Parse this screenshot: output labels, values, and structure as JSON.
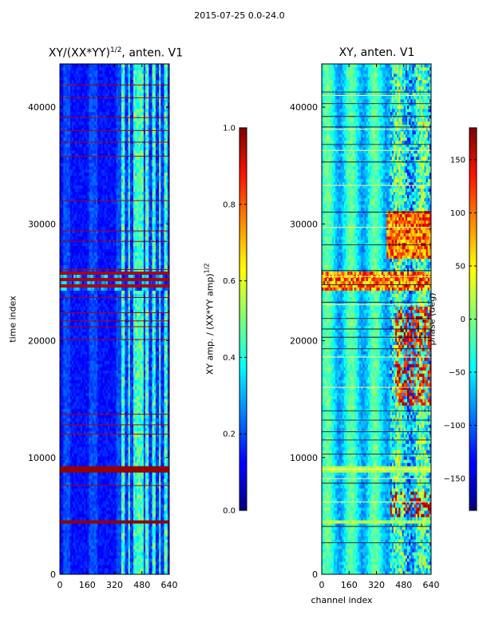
{
  "figure": {
    "suptitle": "2015-07-25 0.0-24.0"
  },
  "chart_data": [
    {
      "type": "heatmap",
      "title_main": "XY/(XX*YY)",
      "title_sup": "1/2",
      "title_tail": ", anten. V1",
      "xlabel": "",
      "ylabel": "time index",
      "xlim": [
        0,
        640
      ],
      "ylim": [
        0,
        43700
      ],
      "xticks": [
        0,
        160,
        320,
        480,
        640
      ],
      "yticks": [
        0,
        10000,
        20000,
        30000,
        40000
      ],
      "colorbar": {
        "label_main": "XY amp. / (XX*YY amp)",
        "label_sup": "1/2",
        "range": [
          0.0,
          1.0
        ],
        "ticks": [
          "0.0",
          "0.2",
          "0.4",
          "0.6",
          "0.8",
          "1.0"
        ],
        "tick_values": [
          0.0,
          0.2,
          0.4,
          0.6,
          0.8,
          1.0
        ]
      },
      "flagged_time_bands": [
        [
          4300,
          4700
        ],
        [
          8800,
          9200
        ],
        [
          24200,
          25900
        ]
      ],
      "high_amplitude_channel_range": [
        400,
        640
      ]
    },
    {
      "type": "heatmap",
      "title": "XY, anten. V1",
      "xlabel": "channel index",
      "ylabel": "",
      "xlim": [
        0,
        640
      ],
      "ylim": [
        0,
        43700
      ],
      "xticks": [
        0,
        160,
        320,
        480,
        640
      ],
      "yticks": [
        0,
        10000,
        20000,
        30000,
        40000
      ],
      "colorbar": {
        "label": "phase (deg)",
        "range": [
          -180,
          180
        ],
        "ticks": [
          "150",
          "100",
          "50",
          "0",
          "−50",
          "−100",
          "−150"
        ],
        "tick_values": [
          150,
          100,
          50,
          0,
          -50,
          -100,
          -150
        ]
      },
      "flagged_time_bands": [
        [
          4300,
          4700
        ],
        [
          8800,
          9200
        ],
        [
          24200,
          25900
        ]
      ]
    }
  ],
  "colors": {
    "frame": "#000000",
    "colormap": "jet"
  }
}
